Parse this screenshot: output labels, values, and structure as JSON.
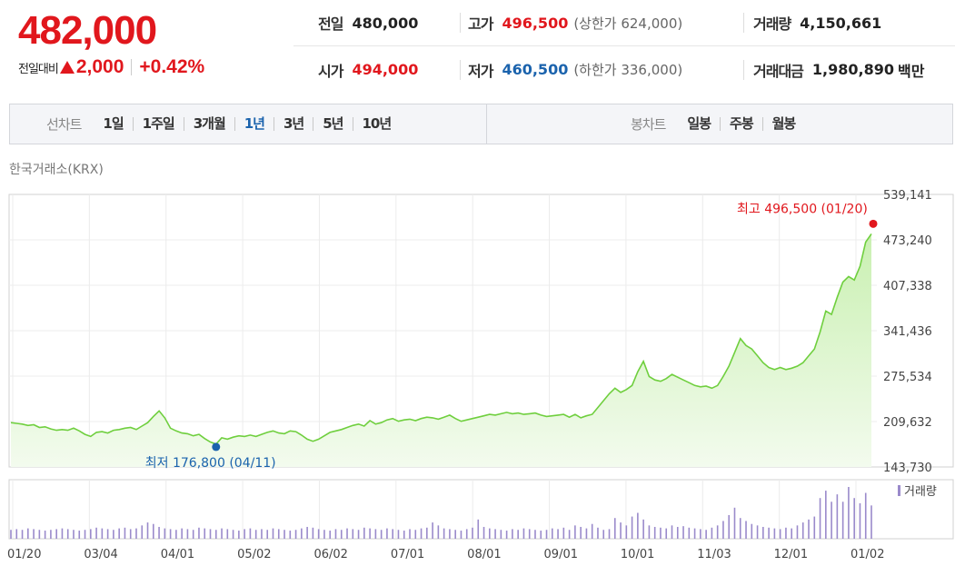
{
  "summary": {
    "current_price": "482,000",
    "change_label": "전일대비",
    "change_value": "2,000",
    "change_percent": "+0.42%"
  },
  "stats": {
    "prev_close": {
      "label": "전일",
      "value": "480,000"
    },
    "high": {
      "label": "고가",
      "value": "496,500",
      "limit_label": "(상한가 624,000)"
    },
    "volume": {
      "label": "거래량",
      "value": "4,150,661"
    },
    "open": {
      "label": "시가",
      "value": "494,000"
    },
    "low": {
      "label": "저가",
      "value": "460,500",
      "limit_label": "(하한가 336,000)"
    },
    "trade_value": {
      "label": "거래대금",
      "value": "1,980,890",
      "unit": "백만"
    }
  },
  "line_chart_tab": {
    "label": "선차트",
    "periods": [
      "1일",
      "1주일",
      "3개월",
      "1년",
      "3년",
      "5년",
      "10년"
    ],
    "active": "1년"
  },
  "candle_chart_tab": {
    "label": "봉차트",
    "options": [
      "일봉",
      "주봉",
      "월봉"
    ]
  },
  "exchange": "한국거래소(KRX)",
  "colors": {
    "up": "#e1171d",
    "down": "#1b63ad",
    "line": "#6fcf3e",
    "fill": "#d8f4c8",
    "volume": "#9a8acb"
  },
  "chart_data": {
    "type": "area",
    "x_tick_labels": [
      "01/20",
      "03/04",
      "04/01",
      "05/02",
      "06/02",
      "07/01",
      "08/01",
      "09/01",
      "10/01",
      "11/03",
      "12/01",
      "01/02"
    ],
    "y_tick_labels": [
      "539,141",
      "473,240",
      "407,338",
      "341,436",
      "275,534",
      "209,632",
      "143,730"
    ],
    "ylim": [
      143730,
      539141
    ],
    "grid": true,
    "high_annotation": {
      "label": "최고",
      "value": "496,500",
      "date": "(01/20)"
    },
    "low_annotation": {
      "label": "최저",
      "value": "176,800",
      "date": "(04/11)"
    },
    "volume_legend": "거래량",
    "series": [
      {
        "values": [
          208000,
          207000,
          206000,
          204000,
          205000,
          201000,
          202000,
          199000,
          197000,
          198000,
          197000,
          200000,
          196000,
          191000,
          188000,
          194000,
          195000,
          193000,
          197000,
          198000,
          200000,
          201000,
          198000,
          203000,
          208000,
          217000,
          225000,
          215000,
          200000,
          196000,
          193000,
          192000,
          189000,
          191000,
          185000,
          180000,
          177000,
          186000,
          184000,
          187000,
          189000,
          188000,
          190000,
          188000,
          191000,
          194000,
          196000,
          193000,
          192000,
          196000,
          195000,
          190000,
          184000,
          181000,
          184000,
          189000,
          194000,
          196000,
          198000,
          201000,
          204000,
          206000,
          203000,
          211000,
          206000,
          208000,
          212000,
          214000,
          210000,
          212000,
          213000,
          211000,
          214000,
          216000,
          215000,
          213000,
          216000,
          219000,
          214000,
          210000,
          212000,
          214000,
          216000,
          218000,
          220000,
          219000,
          221000,
          223000,
          221000,
          222000,
          220000,
          221000,
          222000,
          219000,
          217000,
          218000,
          219000,
          220000,
          216000,
          220000,
          215000,
          218000,
          220000,
          230000,
          240000,
          250000,
          258000,
          252000,
          256000,
          262000,
          282000,
          297000,
          275000,
          270000,
          268000,
          272000,
          278000,
          274000,
          270000,
          266000,
          262000,
          260000,
          261000,
          258000,
          262000,
          275000,
          290000,
          310000,
          330000,
          320000,
          315000,
          305000,
          295000,
          288000,
          285000,
          288000,
          285000,
          287000,
          290000,
          295000,
          305000,
          315000,
          340000,
          370000,
          365000,
          390000,
          412000,
          420000,
          415000,
          435000,
          470000,
          482000
        ]
      },
      {
        "name": "거래량",
        "values": [
          12,
          13,
          12,
          14,
          13,
          12,
          11,
          12,
          13,
          14,
          13,
          12,
          11,
          12,
          13,
          15,
          14,
          13,
          12,
          14,
          15,
          13,
          14,
          18,
          22,
          20,
          16,
          14,
          13,
          12,
          14,
          13,
          12,
          15,
          14,
          13,
          12,
          14,
          13,
          12,
          11,
          13,
          14,
          12,
          13,
          12,
          14,
          13,
          12,
          11,
          12,
          14,
          16,
          15,
          13,
          12,
          11,
          13,
          12,
          14,
          13,
          12,
          15,
          14,
          13,
          12,
          14,
          13,
          12,
          11,
          13,
          12,
          14,
          15,
          22,
          18,
          14,
          13,
          12,
          11,
          13,
          15,
          26,
          16,
          14,
          13,
          12,
          11,
          13,
          12,
          14,
          13,
          12,
          11,
          12,
          14,
          13,
          15,
          12,
          18,
          16,
          14,
          20,
          15,
          12,
          13,
          28,
          22,
          18,
          30,
          35,
          26,
          18,
          16,
          15,
          14,
          18,
          16,
          17,
          15,
          14,
          13,
          12,
          15,
          18,
          24,
          32,
          42,
          28,
          24,
          20,
          18,
          16,
          15,
          14,
          13,
          15,
          14,
          18,
          22,
          26,
          30,
          55,
          65,
          50,
          60,
          50,
          70,
          55,
          48,
          62,
          45
        ]
      }
    ]
  }
}
